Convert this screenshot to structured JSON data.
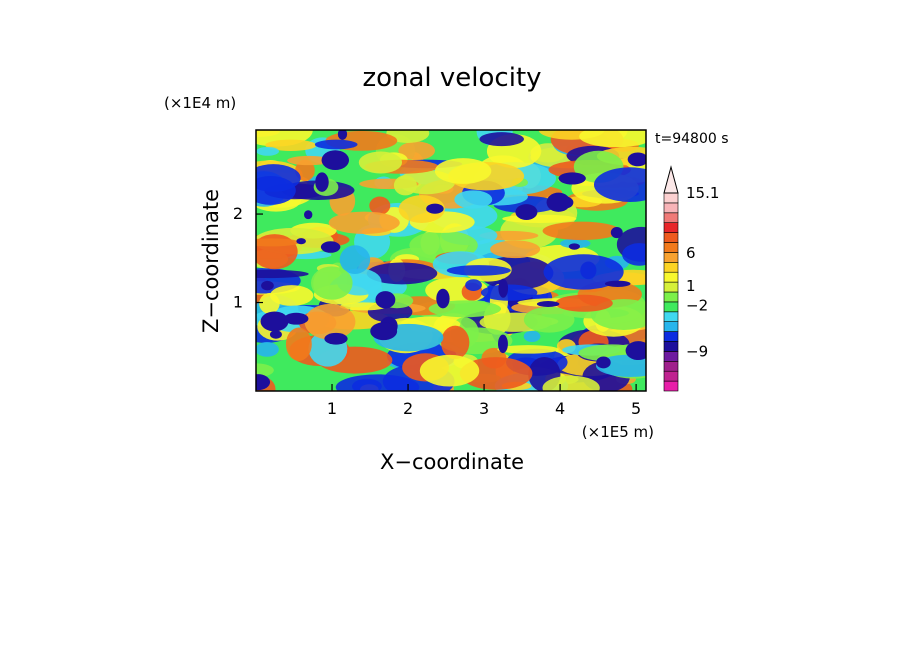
{
  "chart_data": {
    "type": "heatmap",
    "title": "zonal velocity",
    "xlabel": "X−coordinate",
    "ylabel": "Z−coordinate",
    "x_scale_label": "(×1E5 m)",
    "y_scale_label": "(×1E4 m)",
    "time_label": "t=94800 s",
    "x_ticks": [
      "1",
      "2",
      "3",
      "4",
      "5"
    ],
    "y_ticks": [
      "1",
      "2"
    ],
    "xlim": [
      0,
      5.13
    ],
    "ylim": [
      0,
      2.95
    ],
    "colorbar": {
      "labels": [
        {
          "text": "15.1",
          "value": 15.1
        },
        {
          "text": "6",
          "value": 6
        },
        {
          "text": "1",
          "value": 1
        },
        {
          "text": "−2",
          "value": -2
        },
        {
          "text": "−9",
          "value": -9
        }
      ],
      "colors": [
        "#e81ea8",
        "#c02290",
        "#a0208c",
        "#6e1ba0",
        "#1d0f9c",
        "#0c2ce0",
        "#27b5ec",
        "#40d8f0",
        "#3fea5e",
        "#7cf04a",
        "#d6f03a",
        "#f8f82e",
        "#fcd424",
        "#f8a230",
        "#f27a1c",
        "#ee5a1e",
        "#e8262a",
        "#f07a78",
        "#f8b4b8",
        "#fcd0d0"
      ]
    }
  }
}
